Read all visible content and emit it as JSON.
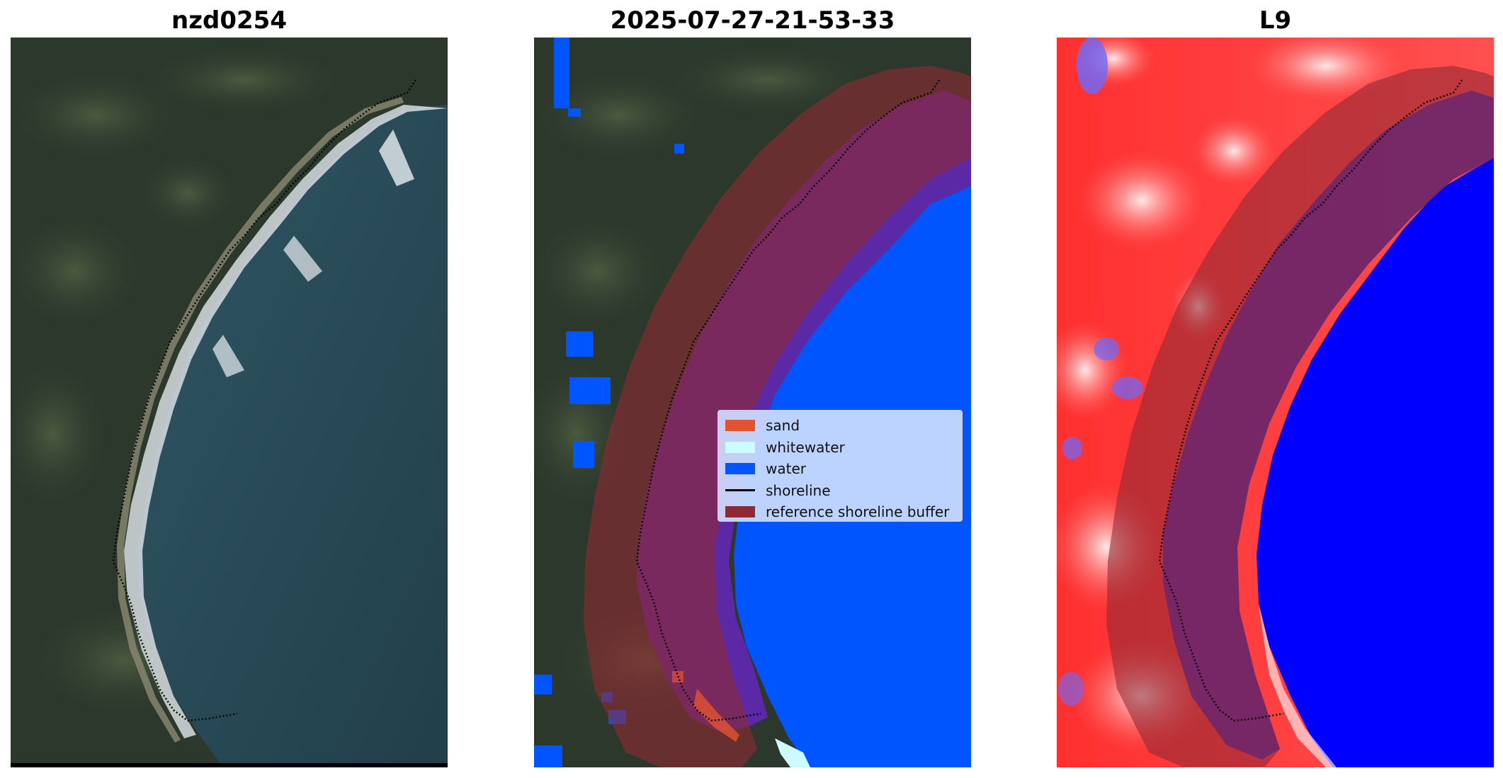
{
  "panels": [
    {
      "title": "nzd0254"
    },
    {
      "title": "2025-07-27-21-53-33"
    },
    {
      "title": "L9"
    }
  ],
  "legend": {
    "items": [
      {
        "label": "sand",
        "color": "#e4532f"
      },
      {
        "label": "whitewater",
        "color": "#ccfcff"
      },
      {
        "label": "water",
        "color": "#0055ff"
      },
      {
        "label": "shoreline",
        "color": "#000000"
      },
      {
        "label": "reference shoreline buffer",
        "color": "#8e2a33"
      }
    ]
  },
  "colors": {
    "land_dark": "#2d3a2c",
    "sea": "#2c4d5a",
    "water_class": "#0055ff",
    "buffer": "#8e2a33",
    "index_positive": "#ff2222",
    "index_negative": "#0000ff"
  }
}
